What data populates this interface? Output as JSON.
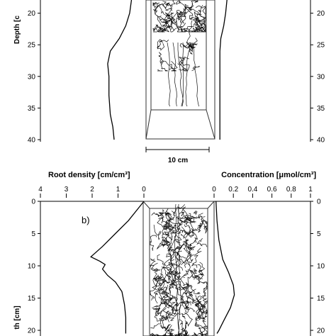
{
  "figure": {
    "scale_bar_label": "10 cm"
  },
  "chart_data": [
    {
      "type": "line",
      "panel": "a",
      "panel_label": "",
      "ylabel": "Depth [c",
      "y_ticks": [
        "20",
        "25",
        "30",
        "35",
        "40"
      ],
      "right_y_ticks": [
        "20",
        "25",
        "30",
        "35",
        "40"
      ],
      "ylim": [
        40,
        15
      ],
      "series": [
        {
          "side": "root_density",
          "points": [
            [
              0.55,
              15
            ],
            [
              0.5,
              16
            ],
            [
              0.45,
              17
            ],
            [
              0.55,
              20
            ],
            [
              0.7,
              22
            ],
            [
              0.95,
              24
            ],
            [
              1.3,
              26
            ],
            [
              1.4,
              28
            ],
            [
              1.35,
              30
            ],
            [
              1.35,
              33
            ],
            [
              1.3,
              36
            ],
            [
              1.2,
              38
            ],
            [
              1.15,
              40
            ]
          ]
        },
        {
          "side": "concentration",
          "points": [
            [
              0.15,
              15
            ],
            [
              0.14,
              17
            ],
            [
              0.12,
              20
            ],
            [
              0.1,
              22
            ],
            [
              0.07,
              24
            ],
            [
              0.06,
              26
            ],
            [
              0.06,
              29
            ],
            [
              0.06,
              32
            ],
            [
              0.06,
              35
            ],
            [
              0.06,
              38
            ],
            [
              0.06,
              40
            ]
          ]
        }
      ]
    },
    {
      "type": "line",
      "panel": "b",
      "panel_label": "b)",
      "x_left": {
        "label": "Root density [cm/cm³]",
        "ticks": [
          "4",
          "3",
          "2",
          "1",
          "0"
        ],
        "values": [
          4,
          3,
          2,
          1,
          0
        ]
      },
      "x_right": {
        "label": "Concentration [μmol/cm³]",
        "ticks": [
          "0",
          "0.2",
          "0.4",
          "0.6",
          "0.8",
          "1"
        ],
        "values": [
          0,
          0.2,
          0.4,
          0.6,
          0.8,
          1
        ]
      },
      "ylabel": "th [cm]",
      "y_ticks": [
        "0",
        "5",
        "10",
        "15",
        "20"
      ],
      "right_y_ticks": [
        "0",
        "5",
        "10",
        "15",
        "20"
      ],
      "ylim": [
        0,
        20
      ],
      "series": [
        {
          "side": "root_density",
          "points": [
            [
              0,
              0
            ],
            [
              0.2,
              1
            ],
            [
              0.6,
              3
            ],
            [
              1.1,
              5
            ],
            [
              1.6,
              7
            ],
            [
              2.05,
              8.6
            ],
            [
              1.7,
              9.3
            ],
            [
              1.5,
              9.8
            ],
            [
              1.6,
              10.5
            ],
            [
              1.4,
              11.5
            ],
            [
              1.1,
              12.5
            ],
            [
              0.85,
              14
            ],
            [
              0.75,
              16
            ],
            [
              0.7,
              18
            ],
            [
              0.7,
              20.5
            ]
          ]
        },
        {
          "side": "concentration",
          "points": [
            [
              0.02,
              0
            ],
            [
              0.03,
              3
            ],
            [
              0.05,
              6
            ],
            [
              0.09,
              9
            ],
            [
              0.15,
              11
            ],
            [
              0.2,
              13
            ],
            [
              0.21,
              14.5
            ],
            [
              0.17,
              16.5
            ],
            [
              0.1,
              18.5
            ],
            [
              0.05,
              20
            ],
            [
              0.03,
              20.5
            ]
          ]
        }
      ]
    }
  ]
}
